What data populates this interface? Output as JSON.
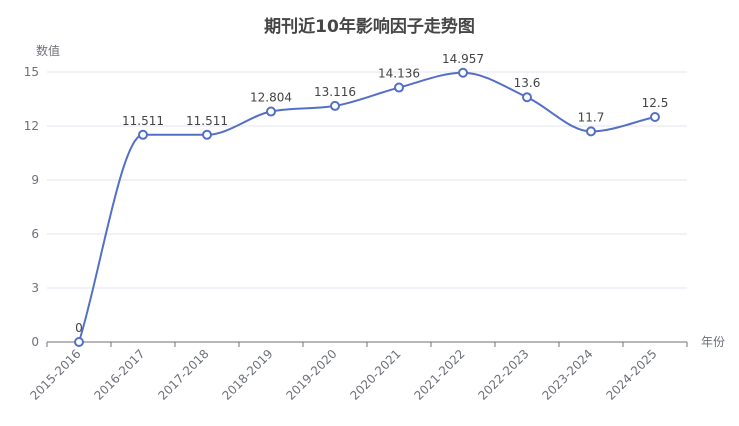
{
  "chart_data": {
    "type": "line",
    "title": "期刊近10年影响因子走势图",
    "xlabel": "年份",
    "ylabel": "数值",
    "categories": [
      "2015-2016",
      "2016-2017",
      "2017-2018",
      "2018-2019",
      "2019-2020",
      "2020-2021",
      "2021-2022",
      "2022-2023",
      "2023-2024",
      "2024-2025"
    ],
    "values": [
      0,
      11.511,
      11.511,
      12.804,
      13.116,
      14.136,
      14.957,
      13.6,
      11.7,
      12.5
    ],
    "data_labels": [
      "0",
      "11.511",
      "11.511",
      "12.804",
      "13.116",
      "14.136",
      "14.957",
      "13.6",
      "11.7",
      "12.5"
    ],
    "y_ticks": [
      "0",
      "3",
      "6",
      "9",
      "12",
      "15"
    ],
    "ylim": [
      0,
      15
    ],
    "grid": true,
    "smooth": true,
    "color": "#5470c6"
  }
}
